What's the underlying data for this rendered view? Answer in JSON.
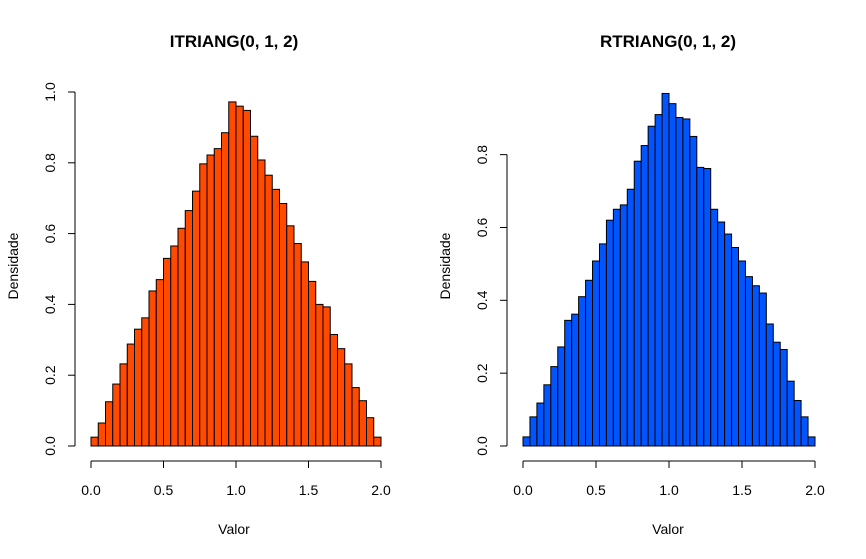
{
  "chart_data": [
    {
      "type": "bar",
      "title": "ITRIANG(0, 1, 2)",
      "xlabel": "Valor",
      "ylabel": "Densidade",
      "xlim": [
        0,
        2
      ],
      "ylim": [
        0,
        1.0
      ],
      "xticks": [
        "0.0",
        "0.5",
        "1.0",
        "1.5",
        "2.0"
      ],
      "yticks": [
        "0.0",
        "0.2",
        "0.4",
        "0.6",
        "0.8",
        "1.0"
      ],
      "xtick_values": [
        0,
        0.5,
        1,
        1.5,
        2
      ],
      "ytick_values": [
        0,
        0.2,
        0.4,
        0.6,
        0.8,
        1.0
      ],
      "bin_width": 0.05,
      "bin_start": 0,
      "values": [
        0.025,
        0.065,
        0.125,
        0.175,
        0.232,
        0.288,
        0.33,
        0.362,
        0.438,
        0.47,
        0.53,
        0.565,
        0.615,
        0.665,
        0.72,
        0.797,
        0.822,
        0.84,
        0.885,
        0.972,
        0.96,
        0.948,
        0.875,
        0.808,
        0.765,
        0.725,
        0.685,
        0.622,
        0.572,
        0.52,
        0.465,
        0.4,
        0.393,
        0.315,
        0.275,
        0.232,
        0.165,
        0.128,
        0.08,
        0.025
      ],
      "colors": {
        "fill": "#FF4A00",
        "stroke": "#000000"
      }
    },
    {
      "type": "bar",
      "title": "RTRIANG(0, 1, 2)",
      "xlabel": "Valor",
      "ylabel": "Densidade",
      "xlim": [
        0,
        2
      ],
      "ylim": [
        0,
        0.972
      ],
      "xticks": [
        "0.0",
        "0.5",
        "1.0",
        "1.5",
        "2.0"
      ],
      "yticks": [
        "0.0",
        "0.2",
        "0.4",
        "0.6",
        "0.8"
      ],
      "xtick_values": [
        0,
        0.5,
        1,
        1.5,
        2
      ],
      "ytick_values": [
        0,
        0.2,
        0.4,
        0.6,
        0.8
      ],
      "bin_width": 0.05,
      "bin_start": 0,
      "values": [
        0.025,
        0.08,
        0.118,
        0.168,
        0.218,
        0.272,
        0.345,
        0.362,
        0.41,
        0.455,
        0.508,
        0.555,
        0.62,
        0.65,
        0.662,
        0.705,
        0.782,
        0.825,
        0.878,
        0.91,
        0.968,
        0.94,
        0.902,
        0.898,
        0.85,
        0.765,
        0.762,
        0.65,
        0.615,
        0.582,
        0.545,
        0.508,
        0.465,
        0.44,
        0.42,
        0.335,
        0.285,
        0.265,
        0.178,
        0.125,
        0.08,
        0.025
      ],
      "colors": {
        "fill": "#0055FF",
        "stroke": "#000000"
      }
    }
  ]
}
